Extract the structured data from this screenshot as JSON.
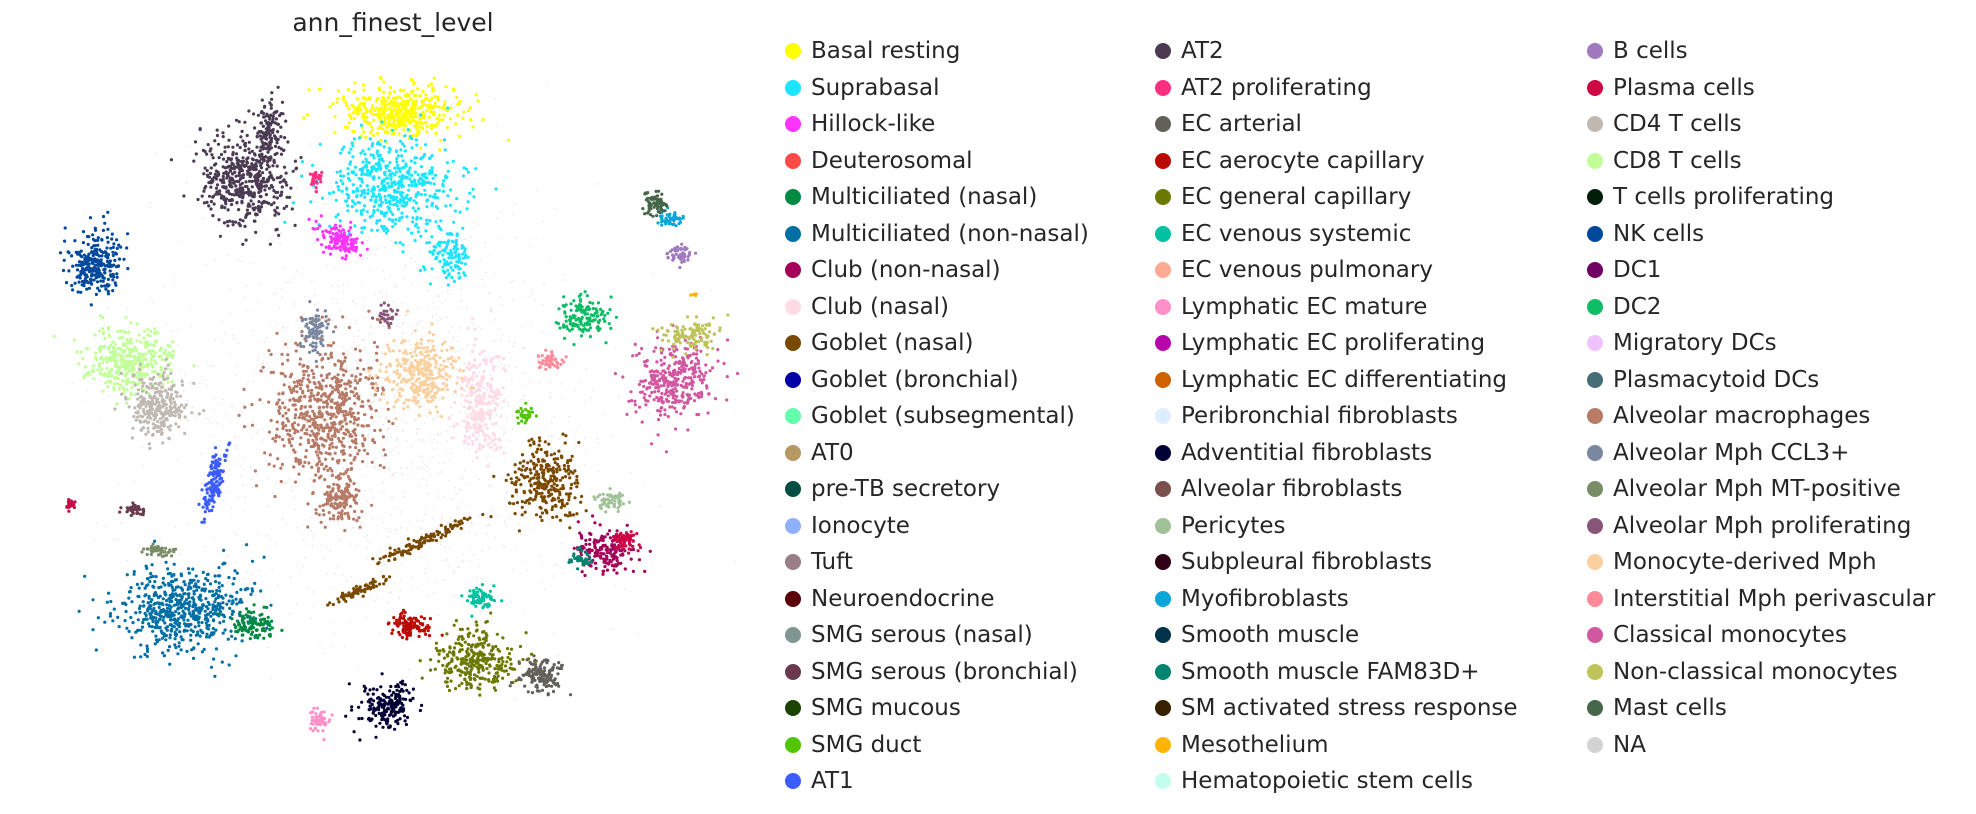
{
  "chart_data": {
    "type": "scatter",
    "title": "ann_finest_level",
    "xlabel": "",
    "ylabel": "",
    "grid": false,
    "axes_visible": false,
    "legend_placement": "right",
    "legend_columns": 3,
    "categories": [
      {
        "label": "Basal resting",
        "color": "#ffff00"
      },
      {
        "label": "Suprabasal",
        "color": "#1ce6ff"
      },
      {
        "label": "Hillock-like",
        "color": "#ff34ff"
      },
      {
        "label": "Deuterosomal",
        "color": "#ff4a46"
      },
      {
        "label": "Multiciliated (nasal)",
        "color": "#008941"
      },
      {
        "label": "Multiciliated (non-nasal)",
        "color": "#006fa6"
      },
      {
        "label": "Club (non-nasal)",
        "color": "#a30059"
      },
      {
        "label": "Club (nasal)",
        "color": "#ffdbe5"
      },
      {
        "label": "Goblet (nasal)",
        "color": "#7a4900"
      },
      {
        "label": "Goblet (bronchial)",
        "color": "#0000a6"
      },
      {
        "label": "Goblet (subsegmental)",
        "color": "#63ffac"
      },
      {
        "label": "AT0",
        "color": "#b79762"
      },
      {
        "label": "pre-TB secretory",
        "color": "#004d43"
      },
      {
        "label": "Ionocyte",
        "color": "#8fb0ff"
      },
      {
        "label": "Tuft",
        "color": "#997d87"
      },
      {
        "label": "Neuroendocrine",
        "color": "#5a0007"
      },
      {
        "label": "SMG serous (nasal)",
        "color": "#809693"
      },
      {
        "label": "SMG serous (bronchial)",
        "color": "#6a3a4c"
      },
      {
        "label": "SMG mucous",
        "color": "#1b4400"
      },
      {
        "label": "SMG duct",
        "color": "#4fc601"
      },
      {
        "label": "AT1",
        "color": "#3b5dff"
      },
      {
        "label": "AT2",
        "color": "#4a3b53"
      },
      {
        "label": "AT2 proliferating",
        "color": "#ff2f80"
      },
      {
        "label": "EC arterial",
        "color": "#61615a"
      },
      {
        "label": "EC aerocyte capillary",
        "color": "#ba0900"
      },
      {
        "label": "EC general capillary",
        "color": "#6b7900"
      },
      {
        "label": "EC venous systemic",
        "color": "#00c2a0"
      },
      {
        "label": "EC venous pulmonary",
        "color": "#ffaa92"
      },
      {
        "label": "Lymphatic EC mature",
        "color": "#ff90c9"
      },
      {
        "label": "Lymphatic EC proliferating",
        "color": "#b903aa"
      },
      {
        "label": "Lymphatic EC differentiating",
        "color": "#d16100"
      },
      {
        "label": "Peribronchial fibroblasts",
        "color": "#ddefff"
      },
      {
        "label": "Adventitial fibroblasts",
        "color": "#000035"
      },
      {
        "label": "Alveolar fibroblasts",
        "color": "#7b4f4b"
      },
      {
        "label": "Pericytes",
        "color": "#a1c299"
      },
      {
        "label": "Subpleural fibroblasts",
        "color": "#300018"
      },
      {
        "label": "Myofibroblasts",
        "color": "#0aa6d8"
      },
      {
        "label": "Smooth muscle",
        "color": "#013349"
      },
      {
        "label": "Smooth muscle FAM83D+",
        "color": "#00846f"
      },
      {
        "label": "SM activated stress response",
        "color": "#372101"
      },
      {
        "label": "Mesothelium",
        "color": "#ffb500"
      },
      {
        "label": "Hematopoietic stem cells",
        "color": "#c2ffed"
      },
      {
        "label": "B cells",
        "color": "#a079bf"
      },
      {
        "label": "Plasma cells",
        "color": "#cc0744"
      },
      {
        "label": "CD4 T cells",
        "color": "#c0b9b2"
      },
      {
        "label": "CD8 T cells",
        "color": "#c2ff99"
      },
      {
        "label": "T cells proliferating",
        "color": "#001e09"
      },
      {
        "label": "NK cells",
        "color": "#00489c"
      },
      {
        "label": "DC1",
        "color": "#6f0062"
      },
      {
        "label": "DC2",
        "color": "#0cbd66"
      },
      {
        "label": "Migratory DCs",
        "color": "#eec3ff"
      },
      {
        "label": "Plasmacytoid DCs",
        "color": "#456d75"
      },
      {
        "label": "Alveolar macrophages",
        "color": "#b77b68"
      },
      {
        "label": "Alveolar Mph CCL3+",
        "color": "#7a87a1"
      },
      {
        "label": "Alveolar Mph MT-positive",
        "color": "#788d66"
      },
      {
        "label": "Alveolar Mph proliferating",
        "color": "#885578"
      },
      {
        "label": "Monocyte-derived Mph",
        "color": "#fad09f"
      },
      {
        "label": "Interstitial Mph perivascular",
        "color": "#ff8a9a"
      },
      {
        "label": "Classical monocytes",
        "color": "#d157a0"
      },
      {
        "label": "Non-classical monocytes",
        "color": "#bec459"
      },
      {
        "label": "Mast cells",
        "color": "#456648"
      },
      {
        "label": "NA",
        "color": "#d3d3d3"
      }
    ]
  }
}
